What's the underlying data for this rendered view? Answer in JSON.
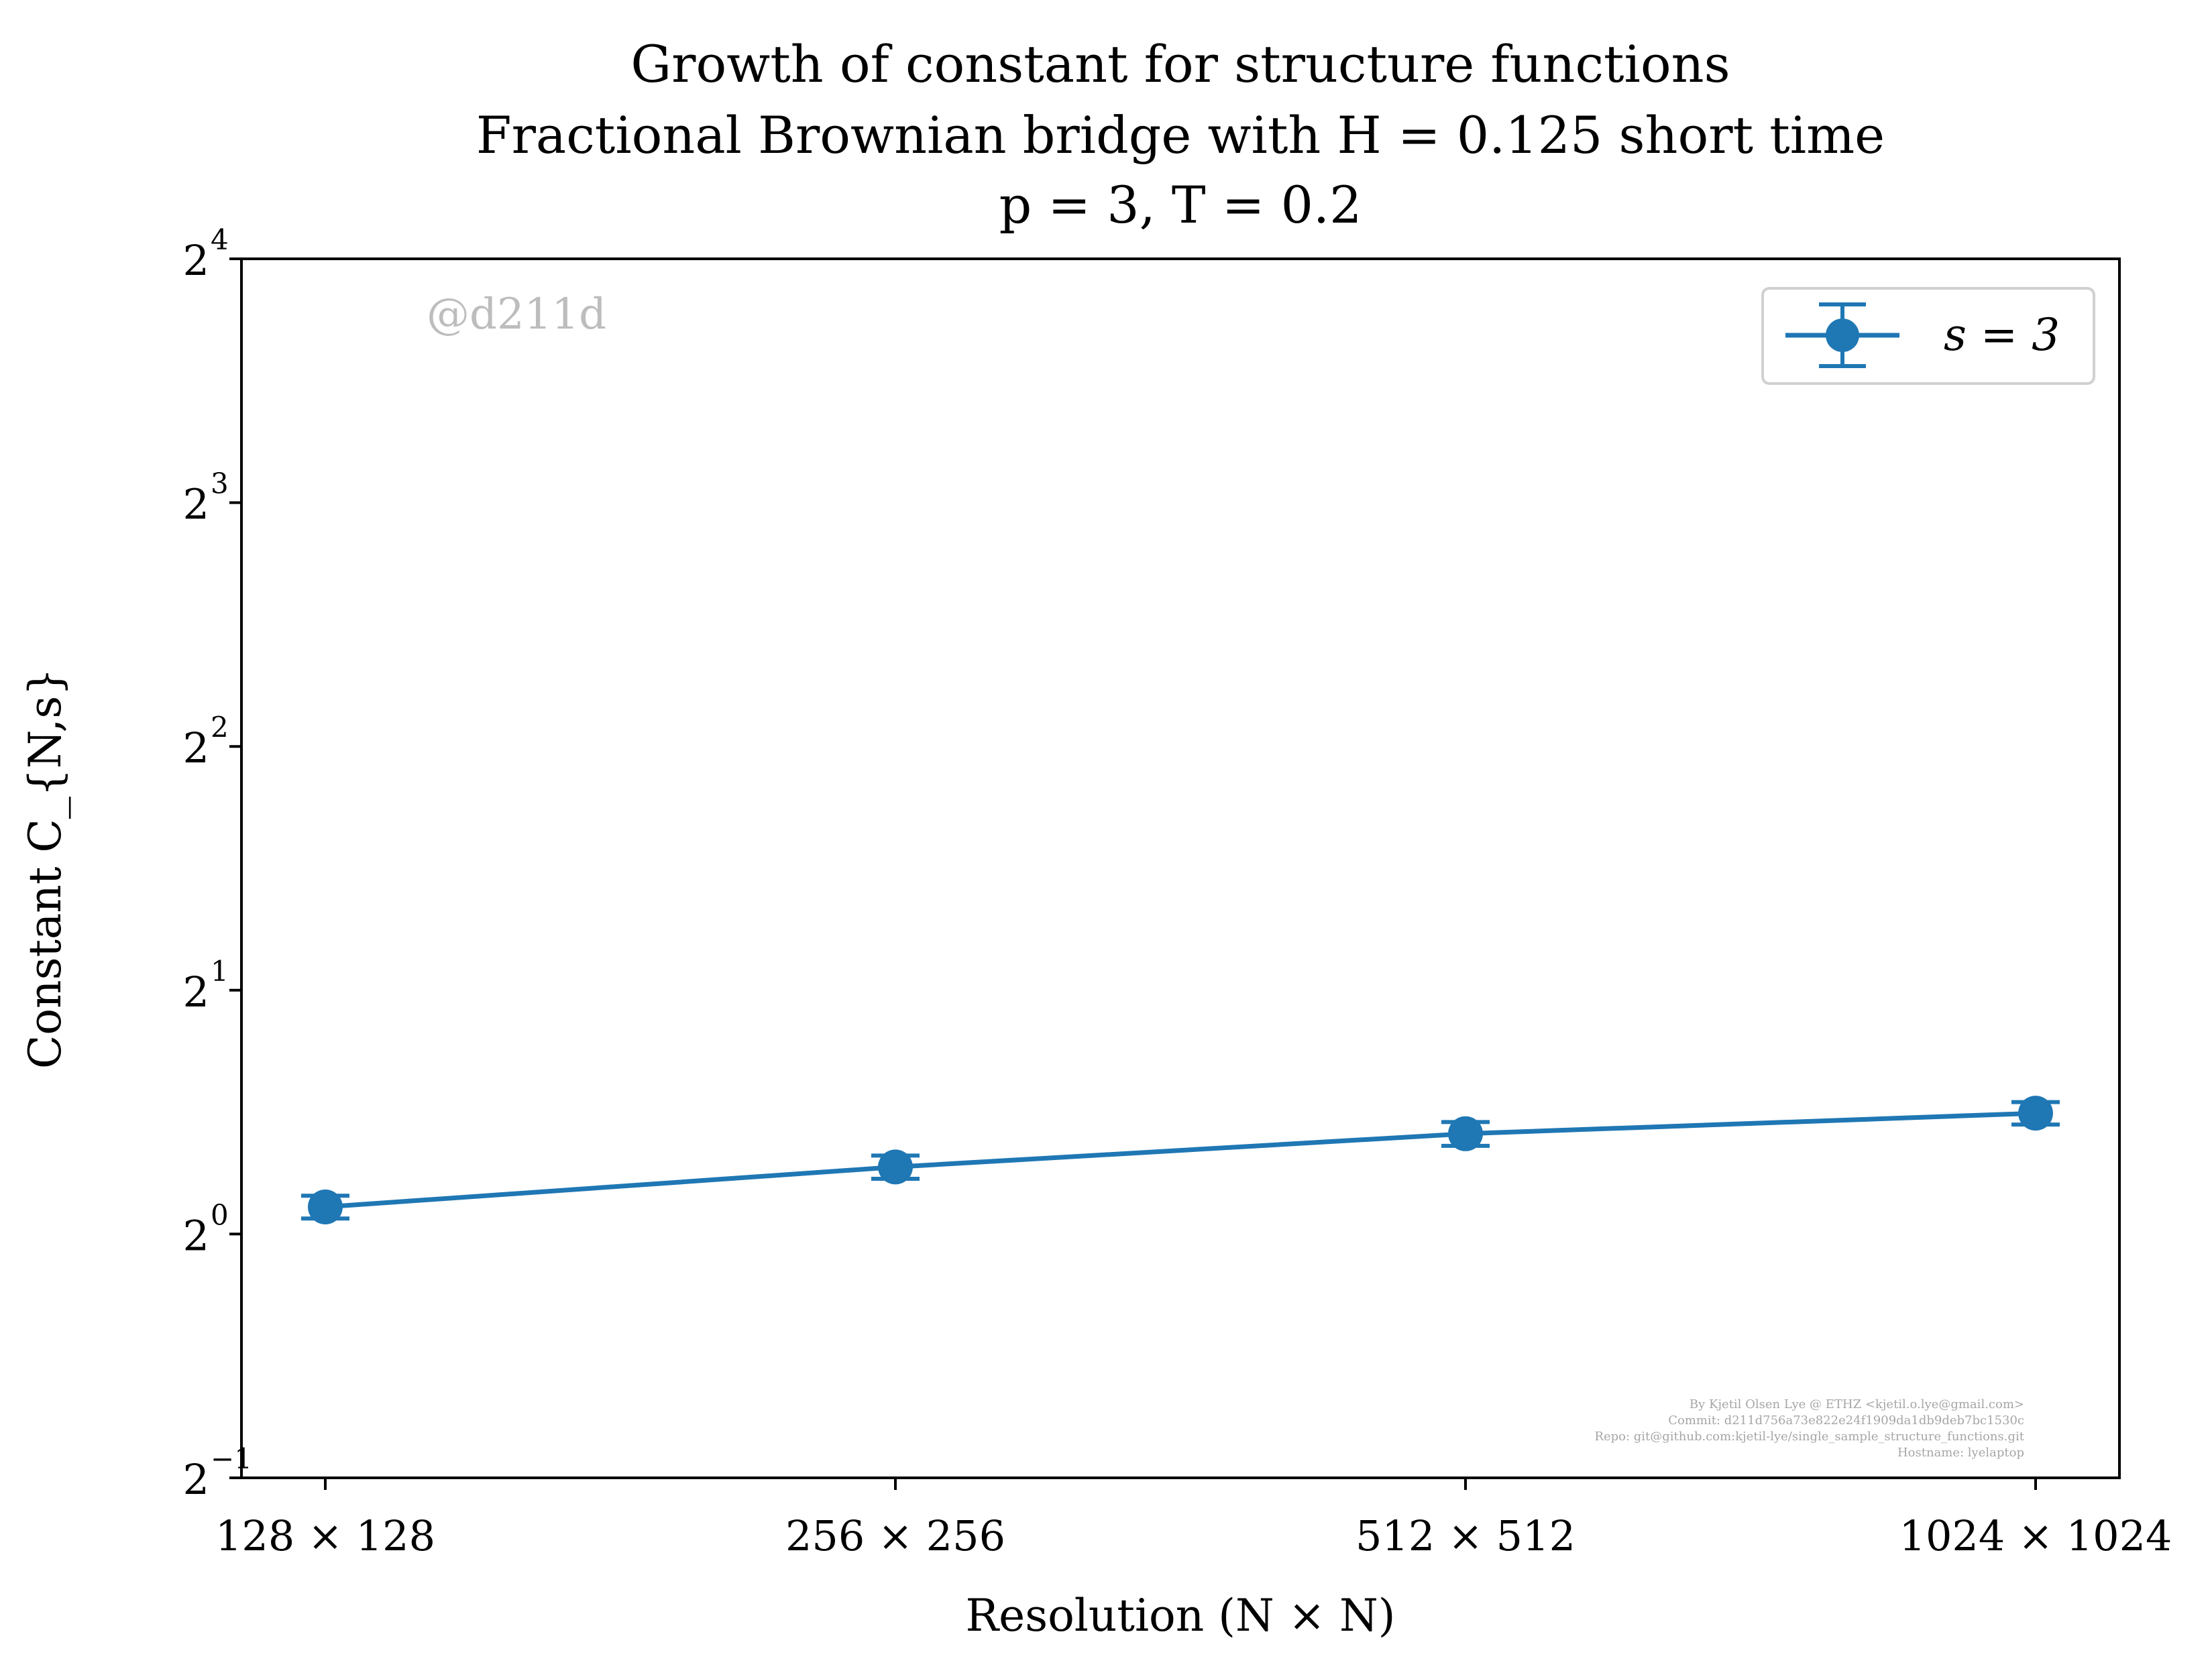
{
  "chart_data": {
    "type": "line",
    "title_lines": [
      "Growth of constant for structure functions",
      "Fractional Brownian bridge with H = 0.125 short time",
      "p = 3, T = 0.2"
    ],
    "xlabel": "Resolution (N × N)",
    "ylabel": "Constant C_{N,s}",
    "categories": [
      "128 × 128",
      "256 × 256",
      "512 × 512",
      "1024 × 1024"
    ],
    "x": [
      128,
      256,
      512,
      1024
    ],
    "x_scale": "log2",
    "y_scale": "log2",
    "ylim": [
      0.5,
      16
    ],
    "yticks": [
      {
        "value": 0.5,
        "base": "2",
        "exp": "−1"
      },
      {
        "value": 1,
        "base": "2",
        "exp": "0"
      },
      {
        "value": 2,
        "base": "2",
        "exp": "1"
      },
      {
        "value": 4,
        "base": "2",
        "exp": "2"
      },
      {
        "value": 8,
        "base": "2",
        "exp": "3"
      },
      {
        "value": 16,
        "base": "2",
        "exp": "4"
      }
    ],
    "grid": false,
    "legend": "top-right",
    "series": [
      {
        "name": "s = 3",
        "color": "#1f77b4",
        "values": [
          1.08,
          1.21,
          1.33,
          1.41
        ],
        "errors": [
          0.035,
          0.04,
          0.045,
          0.045
        ]
      }
    ],
    "annotations": {
      "watermark": "@d211d",
      "credits": [
        "By Kjetil Olsen Lye @ ETHZ <kjetil.o.lye@gmail.com>",
        "Commit: d211d756a73e822e24f1909da1db9deb7bc1530c",
        "Repo: git@github.com:kjetil-lye/single_sample_structure_functions.git",
        "Hostname: lyelaptop"
      ]
    }
  }
}
